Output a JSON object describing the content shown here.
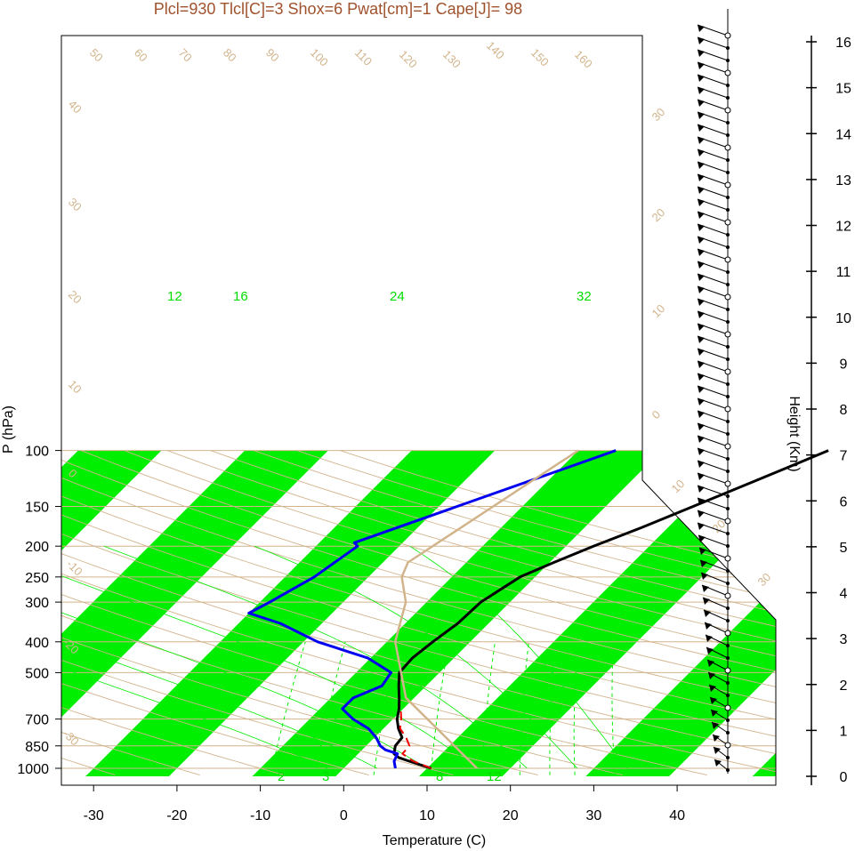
{
  "title": "Plcl=930 Tlcl[C]=3 Shox=6 Pwat[cm]=1 Cape[J]= 98",
  "colors": {
    "band": "#00ee00",
    "iso": "#d2b48c",
    "temp": "#000000",
    "dew": "#0000ee",
    "parcel": "#ee0000",
    "title": "#a0522d"
  },
  "chart_data": {
    "type": "line",
    "subtype": "skew-T log-P diagram",
    "xlabel": "Temperature (C)",
    "ylabel": "P (hPa)",
    "xlim": [
      -34,
      53
    ],
    "ylim_pressure": [
      1050,
      100
    ],
    "x_ticks": [
      "-30",
      "-20",
      "-10",
      "0",
      "10",
      "20",
      "30",
      "40"
    ],
    "y_ticks": [
      "100",
      "150",
      "200",
      "250",
      "300",
      "400",
      "500",
      "700",
      "850",
      "1000"
    ],
    "height_axis": {
      "label": "Height (Km)",
      "ticks": [
        "0",
        "1",
        "2",
        "3",
        "4",
        "5",
        "6",
        "7",
        "8",
        "9",
        "10",
        "11",
        "12",
        "13",
        "14",
        "15",
        "16"
      ]
    },
    "isotherm_labels": [
      "-30",
      "-20",
      "-10",
      "0",
      "10",
      "20",
      "30",
      "10",
      "20",
      "30"
    ],
    "theta_labels": [
      "50",
      "60",
      "70",
      "80",
      "90",
      "100",
      "110",
      "120",
      "130",
      "140",
      "150",
      "160",
      "40",
      "30",
      "20",
      "10",
      "0",
      "-10",
      "-20",
      "-30"
    ],
    "mixing_ratio_labels": [
      "12",
      "16",
      "24",
      "32",
      "2",
      "3",
      "8",
      "12"
    ],
    "series": [
      {
        "name": "",
        "values": [
          [
            1000,
            10.5
          ],
          [
            950,
            7.0
          ],
          [
            925,
            5.3
          ],
          [
            900,
            4.3
          ],
          [
            850,
            3.5
          ],
          [
            800,
            3.3
          ],
          [
            750,
            1.8
          ],
          [
            700,
            0.5
          ],
          [
            650,
            -0.5
          ],
          [
            600,
            -1.8
          ],
          [
            550,
            -3.3
          ],
          [
            500,
            -4.8
          ],
          [
            450,
            -5.0
          ],
          [
            400,
            -4.5
          ],
          [
            350,
            -3.7
          ],
          [
            300,
            -3.5
          ],
          [
            250,
            -1.8
          ],
          [
            225,
            0.5
          ],
          [
            200,
            3.3
          ],
          [
            175,
            6.8
          ],
          [
            150,
            10.5
          ],
          [
            125,
            14.8
          ],
          [
            110,
            17.8
          ],
          [
            100,
            20.0
          ]
        ]
      },
      {
        "name": "",
        "values": [
          [
            1000,
            6.2
          ],
          [
            950,
            5.2
          ],
          [
            900,
            4.7
          ],
          [
            875,
            2.8
          ],
          [
            850,
            1.7
          ],
          [
            800,
            0.2
          ],
          [
            750,
            -1.8
          ],
          [
            700,
            -4.8
          ],
          [
            650,
            -7.3
          ],
          [
            600,
            -7.3
          ],
          [
            550,
            -5.3
          ],
          [
            500,
            -5.8
          ],
          [
            450,
            -10.3
          ],
          [
            400,
            -18.3
          ],
          [
            350,
            -25.0
          ],
          [
            325,
            -30.0
          ],
          [
            300,
            -28.8
          ],
          [
            250,
            -26.5
          ],
          [
            200,
            -25.0
          ],
          [
            195,
            -25.8
          ],
          [
            100,
            -5.5
          ]
        ]
      },
      {
        "name": "",
        "values": [
          [
            1000,
            10.5
          ],
          [
            950,
            7.5
          ],
          [
            900,
            5.3
          ],
          [
            850,
            5.2
          ],
          [
            800,
            3.8
          ],
          [
            750,
            2.0
          ],
          [
            700,
            1.0
          ],
          [
            650,
            -0.3
          ]
        ]
      },
      {
        "name": "",
        "values": [
          [
            1000,
            16.0
          ],
          [
            600,
            -1.0
          ],
          [
            400,
            -9.0
          ],
          [
            300,
            -12.5
          ],
          [
            250,
            -16.0
          ],
          [
            225,
            -17.0
          ],
          [
            100,
            -10.0
          ]
        ]
      }
    ]
  }
}
